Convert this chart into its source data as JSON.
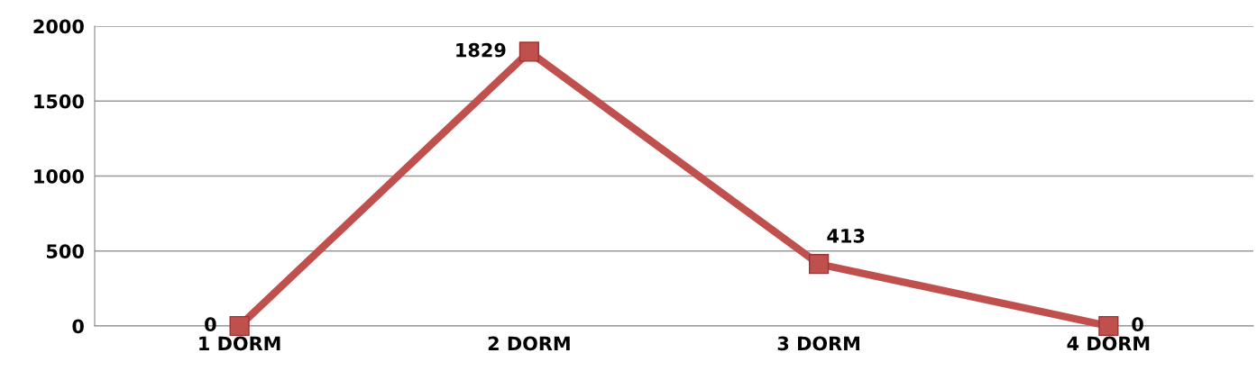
{
  "chart_data": {
    "type": "line",
    "categories": [
      "1 DORM",
      "2 DORM",
      "3 DORM",
      "4 DORM"
    ],
    "series": [
      {
        "color": "#c0504d",
        "values": [
          0,
          1829,
          413,
          0
        ]
      }
    ],
    "ylim": [
      0,
      2000
    ],
    "yticks": [
      0,
      500,
      1000,
      1500,
      2000
    ],
    "grid": "y",
    "marker": "square",
    "line_style": "solid",
    "data_labels": true,
    "legend": false
  }
}
